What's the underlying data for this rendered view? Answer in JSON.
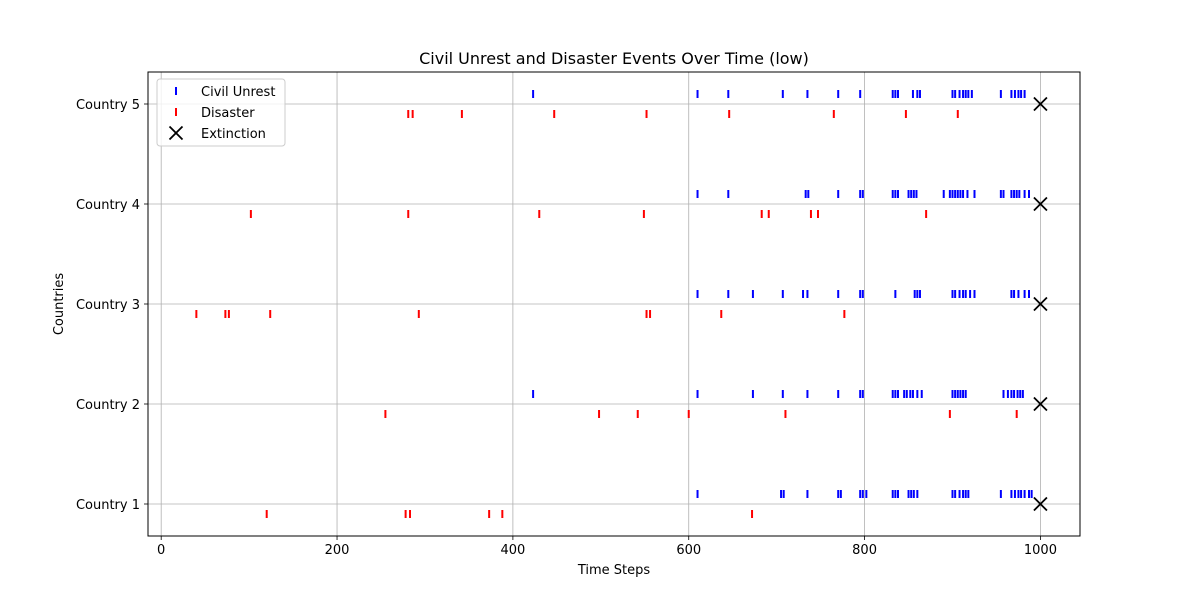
{
  "chart_data": {
    "type": "scatter",
    "title": "Civil Unrest and Disaster Events Over Time (low)",
    "xlabel": "Time Steps",
    "ylabel": "Countries",
    "xlim": [
      -15,
      1045
    ],
    "ylim": [
      0.68,
      5.32
    ],
    "x_ticks": [
      0,
      200,
      400,
      600,
      800,
      1000
    ],
    "y_ticks": [
      {
        "value": 1,
        "label": "Country 1"
      },
      {
        "value": 2,
        "label": "Country 2"
      },
      {
        "value": 3,
        "label": "Country 3"
      },
      {
        "value": 4,
        "label": "Country 4"
      },
      {
        "value": 5,
        "label": "Country 5"
      }
    ],
    "grid": true,
    "legend_position": "upper-left",
    "colors": {
      "civil_unrest": "#0000ff",
      "disaster": "#ff0000",
      "extinction": "#000000",
      "grid": "#b0b0b0"
    },
    "series": [
      {
        "name": "Civil Unrest",
        "marker": "vertical-tick",
        "y_offset": 0.1,
        "events": [
          {
            "country": 1,
            "times": [
              610,
              705,
              708,
              735,
              770,
              773,
              795,
              798,
              802,
              832,
              835,
              838,
              850,
              853,
              856,
              860,
              900,
              903,
              908,
              912,
              915,
              918,
              955,
              967,
              971,
              975,
              978,
              982,
              987,
              990
            ]
          },
          {
            "country": 2,
            "times": [
              423,
              610,
              673,
              707,
              735,
              770,
              795,
              798,
              832,
              835,
              838,
              845,
              848,
              852,
              855,
              860,
              865,
              900,
              903,
              906,
              909,
              912,
              915,
              958,
              963,
              967,
              970,
              974,
              977,
              980
            ]
          },
          {
            "country": 3,
            "times": [
              610,
              645,
              673,
              707,
              730,
              735,
              770,
              795,
              798,
              835,
              857,
              860,
              863,
              900,
              903,
              908,
              912,
              915,
              920,
              925,
              967,
              970,
              975,
              982,
              987
            ]
          },
          {
            "country": 4,
            "times": [
              610,
              645,
              733,
              736,
              770,
              795,
              798,
              832,
              835,
              838,
              850,
              853,
              856,
              859,
              890,
              897,
              900,
              903,
              906,
              909,
              912,
              917,
              925,
              955,
              958,
              967,
              970,
              973,
              976,
              982,
              987
            ]
          },
          {
            "country": 5,
            "times": [
              423,
              610,
              645,
              707,
              735,
              770,
              795,
              832,
              835,
              838,
              855,
              860,
              863,
              900,
              903,
              908,
              912,
              915,
              918,
              922,
              955,
              967,
              971,
              975,
              978,
              982
            ]
          }
        ]
      },
      {
        "name": "Disaster",
        "marker": "vertical-tick",
        "y_offset": -0.1,
        "events": [
          {
            "country": 1,
            "times": [
              120,
              278,
              283,
              373,
              388,
              672
            ]
          },
          {
            "country": 2,
            "times": [
              255,
              498,
              542,
              600,
              710,
              897,
              973
            ]
          },
          {
            "country": 3,
            "times": [
              40,
              73,
              77,
              124,
              293,
              552,
              556,
              637,
              777
            ]
          },
          {
            "country": 4,
            "times": [
              102,
              281,
              430,
              549,
              683,
              691,
              739,
              747,
              870
            ]
          },
          {
            "country": 5,
            "times": [
              281,
              286,
              342,
              447,
              552,
              646,
              765,
              847,
              906
            ]
          }
        ]
      },
      {
        "name": "Extinction",
        "marker": "x",
        "points": [
          {
            "country": 1,
            "time": 1000
          },
          {
            "country": 2,
            "time": 1000
          },
          {
            "country": 3,
            "time": 1000
          },
          {
            "country": 4,
            "time": 1000
          },
          {
            "country": 5,
            "time": 1000
          }
        ]
      }
    ]
  }
}
